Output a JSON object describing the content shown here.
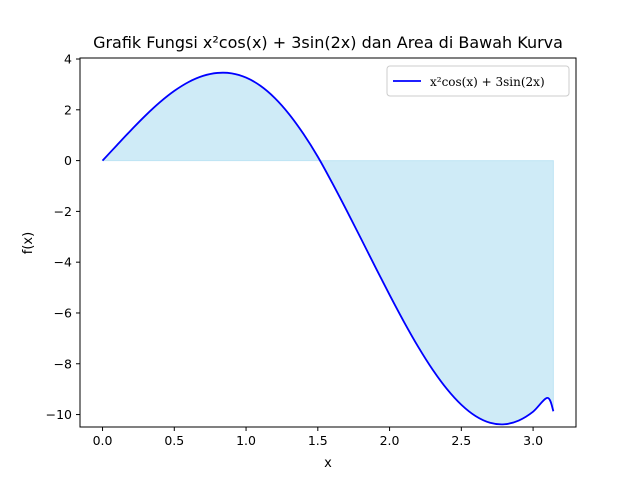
{
  "chart_data": {
    "type": "area",
    "title": "Grafik Fungsi x²cos(x) + 3sin(2x) dan Area di Bawah Kurva",
    "xlabel": "x",
    "ylabel": "f(x)",
    "xlim": [
      -0.157,
      3.299
    ],
    "ylim": [
      -10.49,
      4.04
    ],
    "xticks": [
      0.0,
      0.5,
      1.0,
      1.5,
      2.0,
      2.5,
      3.0
    ],
    "xtick_labels": [
      "0.0",
      "0.5",
      "1.0",
      "1.5",
      "2.0",
      "2.5",
      "3.0"
    ],
    "yticks": [
      -10,
      -8,
      -6,
      -4,
      -2,
      0,
      2,
      4
    ],
    "ytick_labels": [
      "−10",
      "−8",
      "−6",
      "−4",
      "−2",
      "0",
      "2",
      "4"
    ],
    "grid": false,
    "legend_position": "upper-right",
    "series": [
      {
        "name": "x²cos(x) + 3sin(2x)",
        "color": "#0000ff",
        "fill_color": "#87ceeb",
        "fill_alpha": 0.4,
        "x": [
          0.0,
          0.1,
          0.2,
          0.3,
          0.4,
          0.5,
          0.6,
          0.7,
          0.8,
          0.9,
          1.0,
          1.1,
          1.2,
          1.3,
          1.4,
          1.5,
          1.6,
          1.7,
          1.8,
          1.9,
          2.0,
          2.1,
          2.2,
          2.3,
          2.4,
          2.5,
          2.6,
          2.7,
          2.8,
          2.9,
          3.0,
          3.1,
          3.1416
        ],
        "y": [
          0.0,
          0.606,
          1.207,
          1.779,
          2.299,
          2.744,
          3.095,
          3.335,
          3.452,
          3.435,
          3.268,
          2.947,
          2.466,
          1.829,
          1.05,
          0.152,
          -0.876,
          -1.954,
          -3.063,
          -4.182,
          -5.285,
          -6.346,
          -7.338,
          -8.231,
          -8.997,
          -9.614,
          -10.062,
          -10.323,
          -10.383,
          -10.236,
          -9.887,
          -9.344,
          -9.87
        ]
      }
    ]
  }
}
